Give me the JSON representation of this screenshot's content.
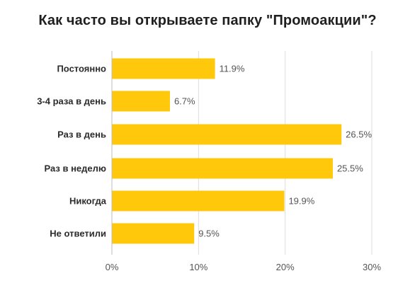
{
  "chart_data": {
    "type": "bar",
    "orientation": "horizontal",
    "title": "Как часто вы открываете папку \"Промоакции\"?",
    "categories": [
      "Постоянно",
      "3-4 раза в день",
      "Раз в день",
      "Раз в неделю",
      "Никогда",
      "Не ответили"
    ],
    "values": [
      11.9,
      6.7,
      26.5,
      25.5,
      19.9,
      9.5
    ],
    "value_labels": [
      "11.9%",
      "6.7%",
      "26.5%",
      "25.5%",
      "19.9%",
      "9.5%"
    ],
    "xlim": [
      0,
      30
    ],
    "x_ticks": [
      0,
      10,
      20,
      30
    ],
    "x_tick_labels": [
      "0%",
      "10%",
      "20%",
      "30%"
    ],
    "grid": true,
    "bar_color": "#FFC80A",
    "grid_color": "#DDDDDD"
  }
}
